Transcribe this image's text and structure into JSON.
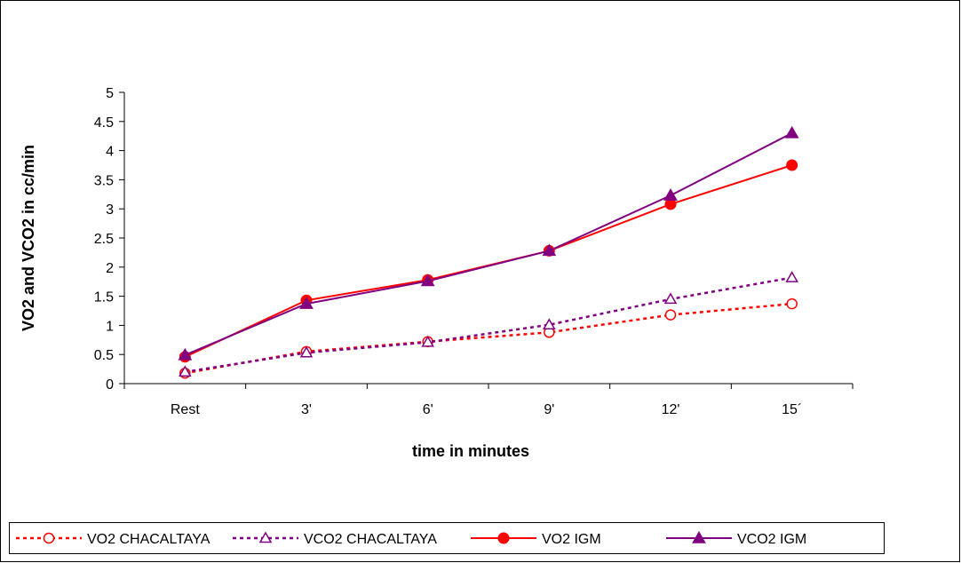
{
  "chart_data": {
    "type": "line",
    "title": "",
    "xlabel": "time in minutes",
    "ylabel": "VO2 and VCO2 in cc/min",
    "categories": [
      "Rest",
      "3'",
      "6'",
      "9'",
      "12'",
      "15´"
    ],
    "ylim": [
      0,
      5
    ],
    "yticks": [
      "0",
      "0.5",
      "1",
      "1.5",
      "2",
      "2.5",
      "3",
      "3.5",
      "4",
      "4.5",
      "5"
    ],
    "ytick_values": [
      0,
      0.5,
      1,
      1.5,
      2,
      2.5,
      3,
      3.5,
      4,
      4.5,
      5
    ],
    "grid": false,
    "legend_position": "bottom",
    "series": [
      {
        "name": "VO2 CHACALTAYA",
        "values": [
          0.18,
          0.55,
          0.72,
          0.88,
          1.18,
          1.37
        ],
        "color": "#ff0000",
        "dash": "dotted",
        "marker": "circle-open"
      },
      {
        "name": "VCO2 CHACALTAYA",
        "values": [
          0.2,
          0.53,
          0.71,
          1.01,
          1.45,
          1.82
        ],
        "color": "#800080",
        "dash": "dotted",
        "marker": "triangle-open"
      },
      {
        "name": "VO2 IGM",
        "values": [
          0.46,
          1.43,
          1.78,
          2.28,
          3.08,
          3.75
        ],
        "color": "#ff0000",
        "dash": "solid",
        "marker": "circle-filled"
      },
      {
        "name": "VCO2 IGM",
        "values": [
          0.49,
          1.37,
          1.76,
          2.28,
          3.23,
          4.3
        ],
        "color": "#800080",
        "dash": "solid",
        "marker": "triangle-filled"
      }
    ]
  }
}
